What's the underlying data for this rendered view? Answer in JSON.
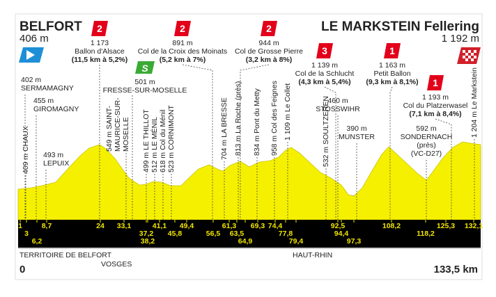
{
  "header": {
    "start": "BELFORT",
    "start_altitude": "406 m",
    "finish": "LE MARKSTEIN Fellering",
    "finish_altitude": "1 192 m"
  },
  "climbs": [
    {
      "category": "2",
      "altitude": "1 173",
      "name": "Ballon d'Alsace",
      "detail": "(11,5 km à 5,2%)"
    },
    {
      "category": "2",
      "altitude": "891 m",
      "name": "Col de la Croix des Moinats",
      "detail": "(5,2 km à 7%)"
    },
    {
      "category": "2",
      "altitude": "944 m",
      "name": "Col de Grosse Pierre",
      "detail": "(3,2 km à 8%)"
    },
    {
      "category": "3",
      "altitude": "1 139 m",
      "name": "Col de la Schlucht",
      "detail": "(4,3 km à 5,4%)"
    },
    {
      "category": "1",
      "altitude": "1 163 m",
      "name": "Petit Ballon",
      "detail": "(9,3 km à 8,1%)"
    },
    {
      "category": "1",
      "altitude": "1 193 m",
      "name": "Col du Platzerwasel",
      "detail": "(7,1 km à 8,4%)"
    }
  ],
  "sprint": {
    "icon": "S",
    "altitude": "501 m",
    "name": "FRESSE-SUR-MOSELLE"
  },
  "places": [
    {
      "lines": [
        "402 m",
        "SERMAMAGNY"
      ]
    },
    {
      "lines": [
        "455 m",
        "GIROMAGNY"
      ]
    },
    {
      "lines": [
        "493 m",
        "LEPUIX"
      ]
    },
    {
      "lines": [
        "460 m",
        "STOSSWIHR"
      ]
    },
    {
      "lines": [
        "390 m",
        "MUNSTER"
      ]
    },
    {
      "lines": [
        "592 m",
        "SONDERNACH",
        "(près)",
        "(VC-D27)"
      ]
    }
  ],
  "vertical_places": [
    {
      "lines": [
        "409 m CHAUX"
      ]
    },
    {
      "lines": [
        "549 m SAINT-",
        "MAURICE-SUR-",
        "MOSELLE"
      ]
    },
    {
      "lines": [
        "499 m LE THILLOT"
      ]
    },
    {
      "lines": [
        "512 m LE MÉNIL"
      ]
    },
    {
      "lines": [
        "618 m Col du Ménil"
      ]
    },
    {
      "lines": [
        "523 m CORNIMONT"
      ]
    },
    {
      "lines": [
        "704 m LA BRESSE"
      ]
    },
    {
      "lines": [
        "813 m La Roche (près)"
      ]
    },
    {
      "lines": [
        "834 m Pont du Metty"
      ]
    },
    {
      "lines": [
        "958 m Col des Feignes"
      ]
    },
    {
      "lines": [
        "1 109 m Le Collet"
      ]
    },
    {
      "lines": [
        "532 m SOULTZEREN"
      ]
    },
    {
      "lines": [
        "1 204 m Le Markstein"
      ]
    }
  ],
  "km_markers": [
    "1",
    "3",
    "6,2",
    "8,7",
    "24",
    "33,1",
    "37,2",
    "38,2",
    "41,1",
    "45,8",
    "49,4",
    "56,5",
    "61,3",
    "63,5",
    "64,9",
    "69,3",
    "74,4",
    "77,8",
    "79,4",
    "92,5",
    "94,4",
    "97,3",
    "108,2",
    "118,2",
    "125,3",
    "132,1"
  ],
  "regions": [
    "TERRITOIRE DE BELFORT",
    "VOSGES",
    "HAUT-RHIN"
  ],
  "distance": {
    "start": "0",
    "end": "133,5 km"
  }
}
